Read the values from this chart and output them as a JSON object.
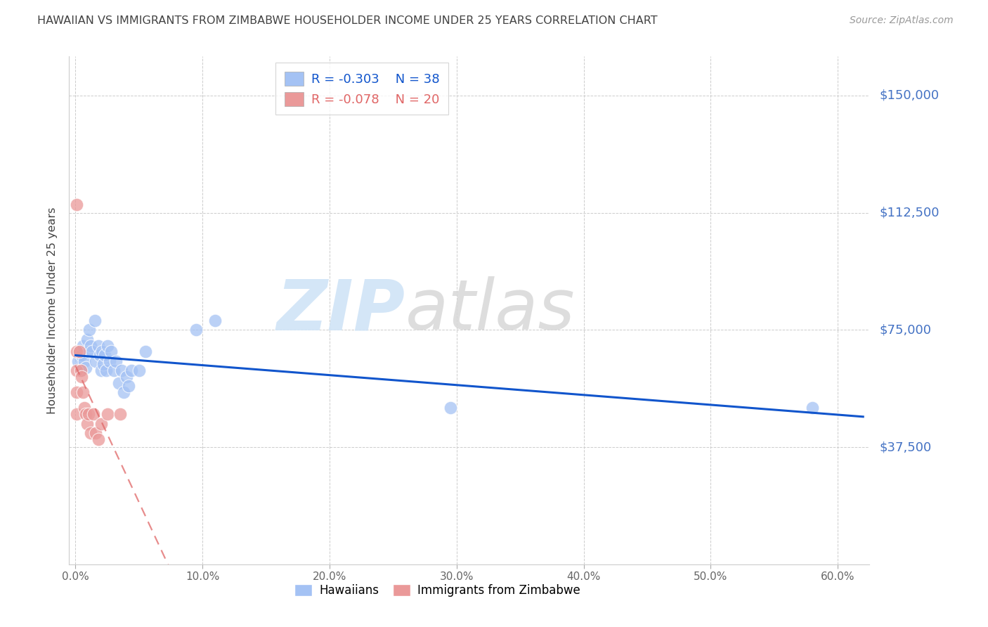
{
  "title": "HAWAIIAN VS IMMIGRANTS FROM ZIMBABWE HOUSEHOLDER INCOME UNDER 25 YEARS CORRELATION CHART",
  "source": "Source: ZipAtlas.com",
  "ylabel": "Householder Income Under 25 years",
  "xlabel_ticks": [
    "0.0%",
    "10.0%",
    "20.0%",
    "30.0%",
    "40.0%",
    "50.0%",
    "60.0%"
  ],
  "xlabel_vals": [
    0.0,
    0.1,
    0.2,
    0.3,
    0.4,
    0.5,
    0.6
  ],
  "ytick_labels": [
    "$37,500",
    "$75,000",
    "$112,500",
    "$150,000"
  ],
  "ytick_vals": [
    37500,
    75000,
    112500,
    150000
  ],
  "ylim": [
    0,
    162500
  ],
  "xlim": [
    -0.005,
    0.625
  ],
  "legend_blue_r": "-0.303",
  "legend_blue_n": "38",
  "legend_pink_r": "-0.078",
  "legend_pink_n": "20",
  "blue_color": "#a4c2f4",
  "pink_color": "#ea9999",
  "blue_line_color": "#1155cc",
  "pink_line_color": "#e06666",
  "watermark_zip": "ZIP",
  "watermark_atlas": "atlas",
  "title_color": "#434343",
  "axis_label_color": "#434343",
  "ytick_color": "#4472c4",
  "xtick_color": "#666666",
  "blue_scatter_x": [
    0.002,
    0.003,
    0.004,
    0.005,
    0.006,
    0.007,
    0.008,
    0.009,
    0.01,
    0.011,
    0.012,
    0.013,
    0.015,
    0.016,
    0.018,
    0.019,
    0.02,
    0.021,
    0.022,
    0.023,
    0.024,
    0.025,
    0.027,
    0.028,
    0.03,
    0.032,
    0.034,
    0.036,
    0.038,
    0.04,
    0.042,
    0.044,
    0.05,
    0.055,
    0.095,
    0.11,
    0.295,
    0.58
  ],
  "blue_scatter_y": [
    65000,
    68000,
    62000,
    67000,
    70000,
    65000,
    63000,
    72000,
    68000,
    75000,
    70000,
    68000,
    78000,
    65000,
    70000,
    67000,
    62000,
    68000,
    64000,
    67000,
    62000,
    70000,
    65000,
    68000,
    62000,
    65000,
    58000,
    62000,
    55000,
    60000,
    57000,
    62000,
    62000,
    68000,
    75000,
    78000,
    50000,
    50000
  ],
  "pink_scatter_x": [
    0.001,
    0.001,
    0.001,
    0.001,
    0.001,
    0.003,
    0.004,
    0.005,
    0.006,
    0.007,
    0.008,
    0.009,
    0.01,
    0.012,
    0.014,
    0.016,
    0.018,
    0.02,
    0.025,
    0.035
  ],
  "pink_scatter_y": [
    115000,
    68000,
    62000,
    55000,
    48000,
    68000,
    62000,
    60000,
    55000,
    50000,
    48000,
    45000,
    48000,
    42000,
    48000,
    42000,
    40000,
    45000,
    48000,
    48000
  ],
  "background_color": "#ffffff",
  "grid_color": "#cccccc"
}
